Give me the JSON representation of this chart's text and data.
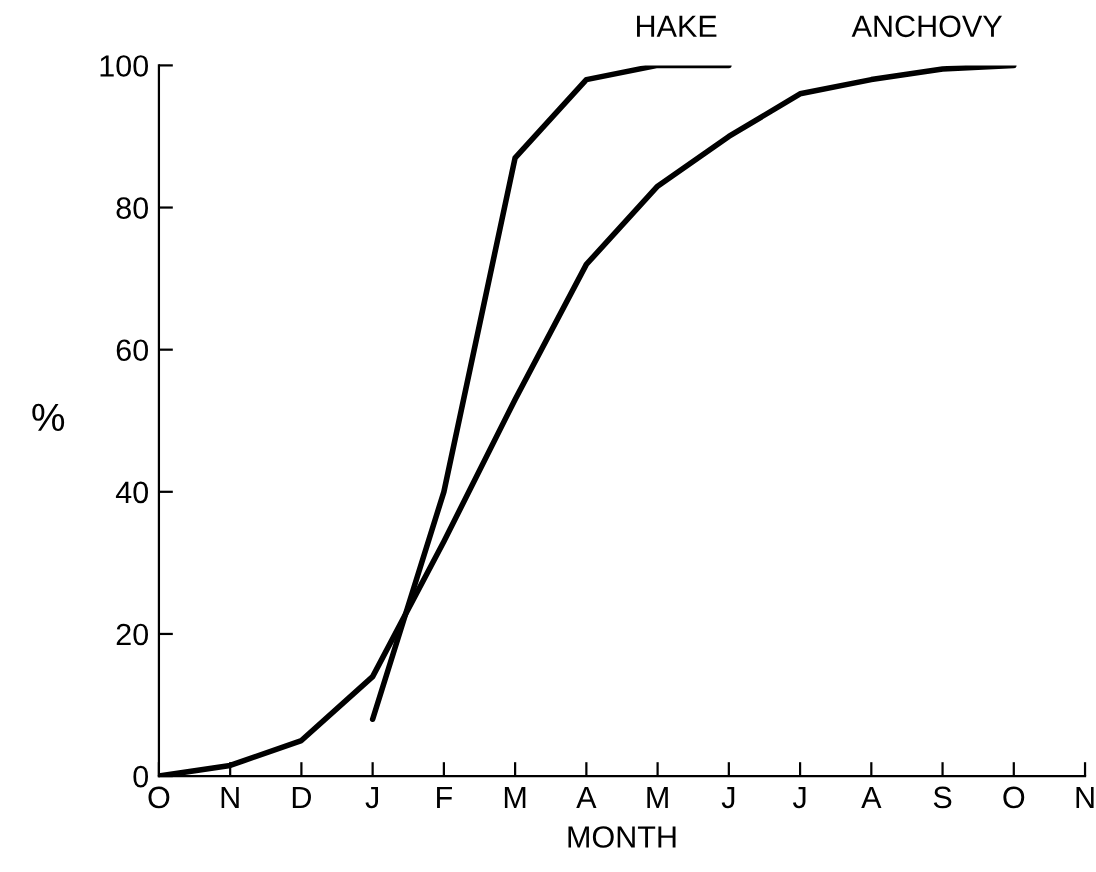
{
  "chart_data": {
    "type": "line",
    "xlabel": "MONTH",
    "ylabel": "%",
    "categories": [
      "O",
      "N",
      "D",
      "J",
      "F",
      "M",
      "A",
      "M",
      "J",
      "J",
      "A",
      "S",
      "O",
      "N"
    ],
    "ylim": [
      0,
      100
    ],
    "yticks": [
      0,
      20,
      40,
      60,
      80,
      100
    ],
    "grid": false,
    "legend": false,
    "marker": "none",
    "line_style": "solid",
    "series": [
      {
        "name": "HAKE",
        "color": "#000000",
        "values": [
          null,
          null,
          null,
          8,
          40,
          87,
          98,
          100,
          100,
          null,
          null,
          null,
          null,
          null
        ]
      },
      {
        "name": "ANCHOVY",
        "color": "#000000",
        "values": [
          0,
          1.5,
          5,
          14,
          33,
          53,
          72,
          83,
          90,
          96,
          98,
          99.5,
          100,
          null
        ]
      }
    ]
  }
}
